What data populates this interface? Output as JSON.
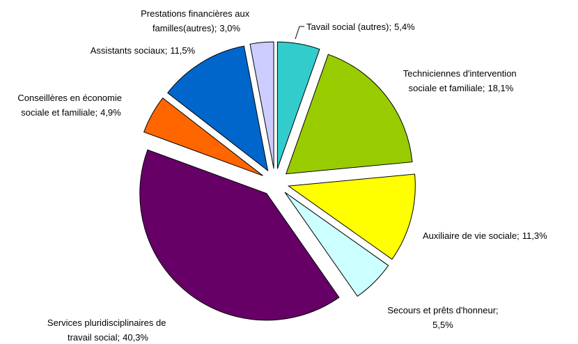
{
  "chart_data": {
    "type": "pie",
    "categories": [
      "Tavail social (autres);",
      "Techniciennes d'intervention sociale et familiale;",
      "Auxiliaire de vie sociale;",
      "Secours et prêts d'honneur;",
      "Services pluridisciplinaires de travail social;",
      "Conseillères en économie sociale et familiale;",
      "Assistants sociaux;",
      "Prestations financières aux familles(autres);"
    ],
    "values": [
      5.4,
      18.1,
      11.3,
      5.5,
      40.3,
      4.9,
      11.5,
      3.0
    ],
    "value_labels": [
      "5,4%",
      "18,1%",
      "11,3%",
      "5,5%",
      "40,3%",
      "4,9%",
      "11,5%",
      "3,0%"
    ],
    "colors": [
      "#33cccc",
      "#99cc00",
      "#ffff00",
      "#ccffff",
      "#660066",
      "#ff6600",
      "#0066cc",
      "#ccccff"
    ]
  }
}
